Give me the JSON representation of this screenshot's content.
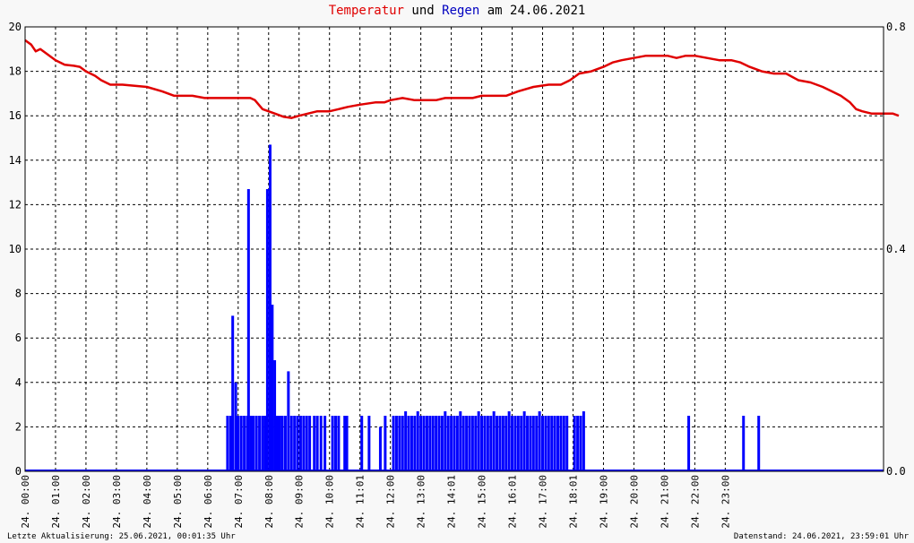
{
  "title": {
    "part1": "Temperatur",
    "part2": " und ",
    "part3": "Regen",
    "part4": " am 24.06.2021"
  },
  "footer": {
    "left": "Letzte Aktualisierung: 25.06.2021, 00:01:35 Uhr",
    "right": "Datenstand: 24.06.2021, 23:59:01 Uhr"
  },
  "colors": {
    "temperature": "#e00000",
    "rain": "#0000ff",
    "title_temperature": "#e00000",
    "title_rain": "#0000c0",
    "grid": "#000000",
    "background": "#ffffff"
  },
  "chart_data": {
    "type": "line",
    "grid": true,
    "x_unit": "hours",
    "xlim": [
      0,
      28.2
    ],
    "x_ticks": [
      {
        "x": 1,
        "label": "24. 01:00"
      },
      {
        "x": 2,
        "label": "24. 02:00"
      },
      {
        "x": 3,
        "label": "24. 03:00"
      },
      {
        "x": 4,
        "label": "24. 04:00"
      },
      {
        "x": 5,
        "label": "24. 05:00"
      },
      {
        "x": 6,
        "label": "24. 06:00"
      },
      {
        "x": 7,
        "label": "24. 07:00"
      },
      {
        "x": 8,
        "label": "24. 08:00"
      },
      {
        "x": 9,
        "label": "24. 09:00"
      },
      {
        "x": 10,
        "label": "24. 10:00"
      },
      {
        "x": 11,
        "label": "24. 11:01"
      },
      {
        "x": 12,
        "label": "24. 12:00"
      },
      {
        "x": 13,
        "label": "24. 13:00"
      },
      {
        "x": 14,
        "label": "24. 14:01"
      },
      {
        "x": 15,
        "label": "24. 15:00"
      },
      {
        "x": 16,
        "label": "24. 16:01"
      },
      {
        "x": 17,
        "label": "24. 17:00"
      },
      {
        "x": 18,
        "label": "24. 18:01"
      },
      {
        "x": 19,
        "label": "24. 19:00"
      },
      {
        "x": 20,
        "label": "24. 20:00"
      },
      {
        "x": 21,
        "label": "24. 21:00"
      },
      {
        "x": 22,
        "label": "24. 22:00"
      },
      {
        "x": 23,
        "label": "24. 23:00"
      }
    ],
    "x_zero_label": "24. 00:00",
    "y_left": {
      "min": 0,
      "max": 20,
      "ticks": [
        0,
        2,
        4,
        6,
        8,
        10,
        12,
        14,
        16,
        18,
        20
      ]
    },
    "y_right": {
      "min": 0,
      "max": 0.8,
      "ticks": [
        "0.0",
        "0.4",
        "0.8"
      ]
    },
    "series": [
      {
        "name": "Temperatur",
        "kind": "line",
        "points": [
          [
            0.0,
            19.4
          ],
          [
            0.2,
            19.2
          ],
          [
            0.35,
            18.9
          ],
          [
            0.5,
            19.0
          ],
          [
            0.7,
            18.8
          ],
          [
            1.0,
            18.5
          ],
          [
            1.3,
            18.3
          ],
          [
            1.6,
            18.25
          ],
          [
            1.8,
            18.2
          ],
          [
            2.0,
            18.0
          ],
          [
            2.3,
            17.8
          ],
          [
            2.5,
            17.6
          ],
          [
            2.8,
            17.4
          ],
          [
            3.2,
            17.4
          ],
          [
            3.6,
            17.35
          ],
          [
            4.0,
            17.3
          ],
          [
            4.5,
            17.1
          ],
          [
            4.9,
            16.9
          ],
          [
            5.5,
            16.9
          ],
          [
            5.9,
            16.8
          ],
          [
            6.5,
            16.8
          ],
          [
            7.4,
            16.8
          ],
          [
            7.55,
            16.7
          ],
          [
            7.8,
            16.3
          ],
          [
            8.2,
            16.1
          ],
          [
            8.5,
            15.95
          ],
          [
            8.75,
            15.9
          ],
          [
            9.0,
            16.0
          ],
          [
            9.3,
            16.1
          ],
          [
            9.6,
            16.2
          ],
          [
            10.0,
            16.2
          ],
          [
            10.3,
            16.3
          ],
          [
            10.6,
            16.4
          ],
          [
            11.0,
            16.5
          ],
          [
            11.5,
            16.6
          ],
          [
            11.8,
            16.6
          ],
          [
            12.0,
            16.7
          ],
          [
            12.4,
            16.8
          ],
          [
            12.8,
            16.7
          ],
          [
            13.2,
            16.7
          ],
          [
            13.5,
            16.7
          ],
          [
            13.8,
            16.8
          ],
          [
            14.3,
            16.8
          ],
          [
            14.7,
            16.8
          ],
          [
            15.0,
            16.9
          ],
          [
            15.4,
            16.9
          ],
          [
            15.8,
            16.9
          ],
          [
            16.2,
            17.1
          ],
          [
            16.7,
            17.3
          ],
          [
            17.2,
            17.4
          ],
          [
            17.6,
            17.4
          ],
          [
            17.9,
            17.6
          ],
          [
            18.2,
            17.9
          ],
          [
            18.6,
            18.0
          ],
          [
            19.0,
            18.2
          ],
          [
            19.3,
            18.4
          ],
          [
            19.6,
            18.5
          ],
          [
            20.0,
            18.6
          ],
          [
            20.4,
            18.7
          ],
          [
            20.8,
            18.7
          ],
          [
            21.1,
            18.7
          ],
          [
            21.4,
            18.6
          ],
          [
            21.7,
            18.7
          ],
          [
            22.0,
            18.7
          ],
          [
            22.4,
            18.6
          ],
          [
            22.8,
            18.5
          ],
          [
            23.2,
            18.5
          ],
          [
            23.5,
            18.4
          ],
          [
            23.8,
            18.2
          ],
          [
            24.2,
            18.0
          ],
          [
            24.6,
            17.9
          ],
          [
            25.0,
            17.9
          ],
          [
            25.4,
            17.6
          ],
          [
            25.8,
            17.5
          ],
          [
            26.2,
            17.3
          ],
          [
            26.5,
            17.1
          ],
          [
            26.8,
            16.9
          ],
          [
            27.1,
            16.6
          ],
          [
            27.3,
            16.3
          ],
          [
            27.5,
            16.2
          ],
          [
            27.8,
            16.1
          ],
          [
            28.1,
            16.1
          ],
          [
            28.3,
            16.1
          ],
          [
            28.5,
            16.1
          ],
          [
            28.7,
            16.0
          ]
        ]
      },
      {
        "name": "Regen",
        "kind": "bars",
        "bars": [
          [
            6.65,
            2.5
          ],
          [
            6.75,
            2.5
          ],
          [
            6.82,
            7.0
          ],
          [
            6.92,
            4.0
          ],
          [
            7.0,
            2.5
          ],
          [
            7.1,
            2.5
          ],
          [
            7.2,
            2.5
          ],
          [
            7.3,
            2.5
          ],
          [
            7.34,
            12.7
          ],
          [
            7.42,
            2.5
          ],
          [
            7.5,
            2.5
          ],
          [
            7.6,
            2.5
          ],
          [
            7.7,
            2.5
          ],
          [
            7.8,
            2.5
          ],
          [
            7.89,
            2.5
          ],
          [
            7.96,
            12.7
          ],
          [
            8.05,
            14.7
          ],
          [
            8.12,
            7.5
          ],
          [
            8.2,
            5.0
          ],
          [
            8.28,
            2.5
          ],
          [
            8.36,
            2.5
          ],
          [
            8.45,
            2.5
          ],
          [
            8.55,
            2.5
          ],
          [
            8.65,
            4.5
          ],
          [
            8.75,
            2.5
          ],
          [
            8.85,
            2.5
          ],
          [
            8.95,
            2.5
          ],
          [
            9.05,
            2.5
          ],
          [
            9.15,
            2.5
          ],
          [
            9.25,
            2.5
          ],
          [
            9.35,
            2.5
          ],
          [
            9.5,
            2.5
          ],
          [
            9.6,
            2.5
          ],
          [
            9.72,
            2.5
          ],
          [
            9.85,
            2.5
          ],
          [
            10.1,
            2.5
          ],
          [
            10.2,
            2.5
          ],
          [
            10.3,
            2.5
          ],
          [
            10.5,
            2.5
          ],
          [
            10.57,
            2.5
          ],
          [
            11.06,
            2.5
          ],
          [
            11.3,
            2.5
          ],
          [
            11.67,
            2.0
          ],
          [
            11.83,
            2.5
          ],
          [
            12.1,
            2.5
          ],
          [
            12.2,
            2.5
          ],
          [
            12.3,
            2.5
          ],
          [
            12.4,
            2.5
          ],
          [
            12.5,
            2.7
          ],
          [
            12.6,
            2.5
          ],
          [
            12.7,
            2.5
          ],
          [
            12.8,
            2.5
          ],
          [
            12.9,
            2.7
          ],
          [
            13.0,
            2.5
          ],
          [
            13.1,
            2.5
          ],
          [
            13.2,
            2.5
          ],
          [
            13.3,
            2.5
          ],
          [
            13.4,
            2.5
          ],
          [
            13.5,
            2.5
          ],
          [
            13.6,
            2.5
          ],
          [
            13.7,
            2.5
          ],
          [
            13.8,
            2.7
          ],
          [
            13.9,
            2.5
          ],
          [
            14.0,
            2.5
          ],
          [
            14.1,
            2.5
          ],
          [
            14.2,
            2.5
          ],
          [
            14.3,
            2.7
          ],
          [
            14.4,
            2.5
          ],
          [
            14.5,
            2.5
          ],
          [
            14.6,
            2.5
          ],
          [
            14.7,
            2.5
          ],
          [
            14.8,
            2.5
          ],
          [
            14.9,
            2.7
          ],
          [
            15.0,
            2.5
          ],
          [
            15.1,
            2.5
          ],
          [
            15.2,
            2.5
          ],
          [
            15.3,
            2.5
          ],
          [
            15.4,
            2.7
          ],
          [
            15.5,
            2.5
          ],
          [
            15.6,
            2.5
          ],
          [
            15.7,
            2.5
          ],
          [
            15.8,
            2.5
          ],
          [
            15.9,
            2.7
          ],
          [
            16.0,
            2.5
          ],
          [
            16.1,
            2.5
          ],
          [
            16.2,
            2.5
          ],
          [
            16.3,
            2.5
          ],
          [
            16.4,
            2.7
          ],
          [
            16.5,
            2.5
          ],
          [
            16.6,
            2.5
          ],
          [
            16.7,
            2.5
          ],
          [
            16.8,
            2.5
          ],
          [
            16.9,
            2.7
          ],
          [
            17.0,
            2.5
          ],
          [
            17.1,
            2.5
          ],
          [
            17.2,
            2.5
          ],
          [
            17.3,
            2.5
          ],
          [
            17.4,
            2.5
          ],
          [
            17.5,
            2.5
          ],
          [
            17.6,
            2.5
          ],
          [
            17.7,
            2.5
          ],
          [
            17.8,
            2.5
          ],
          [
            18.05,
            2.5
          ],
          [
            18.15,
            2.5
          ],
          [
            18.25,
            2.5
          ],
          [
            18.35,
            2.7
          ],
          [
            21.8,
            2.5
          ],
          [
            23.6,
            2.5
          ],
          [
            24.1,
            2.5
          ]
        ]
      }
    ]
  }
}
